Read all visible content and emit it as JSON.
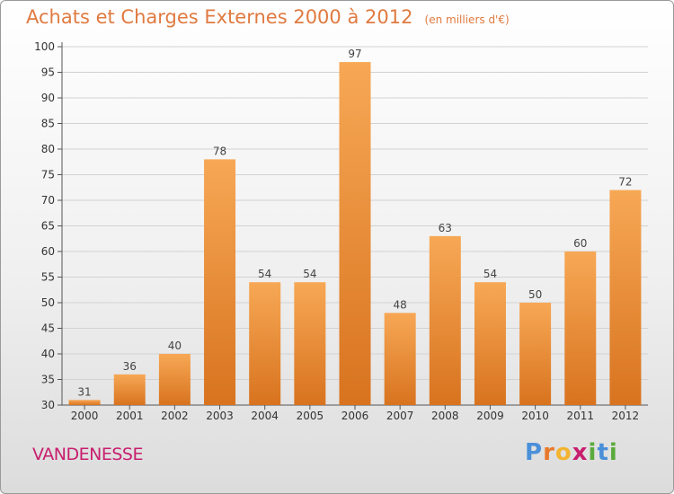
{
  "title": "Achats et Charges Externes 2000 à 2012",
  "subtitle": "(en milliers d'€)",
  "commune": "VANDENESSE",
  "logo": {
    "letters": [
      "P",
      "r",
      "o",
      "x",
      "i",
      "t",
      "i"
    ],
    "colors": [
      "#4a90d9",
      "#e8792b",
      "#f2b431",
      "#c81e6e",
      "#5aaa3c",
      "#4a90d9",
      "#5aaa3c"
    ]
  },
  "chart_data": {
    "type": "bar",
    "categories": [
      "2000",
      "2001",
      "2002",
      "2003",
      "2004",
      "2005",
      "2006",
      "2007",
      "2008",
      "2009",
      "2010",
      "2011",
      "2012"
    ],
    "values": [
      31,
      36,
      40,
      78,
      54,
      54,
      97,
      48,
      63,
      54,
      50,
      60,
      72
    ],
    "ylim": [
      30,
      100
    ],
    "yticks": [
      30,
      35,
      40,
      45,
      50,
      55,
      60,
      65,
      70,
      75,
      80,
      85,
      90,
      95,
      100
    ],
    "grid": true,
    "bar_color_top": "#f7a855",
    "bar_color_bottom": "#d8731f",
    "xlabel": "",
    "ylabel": ""
  }
}
